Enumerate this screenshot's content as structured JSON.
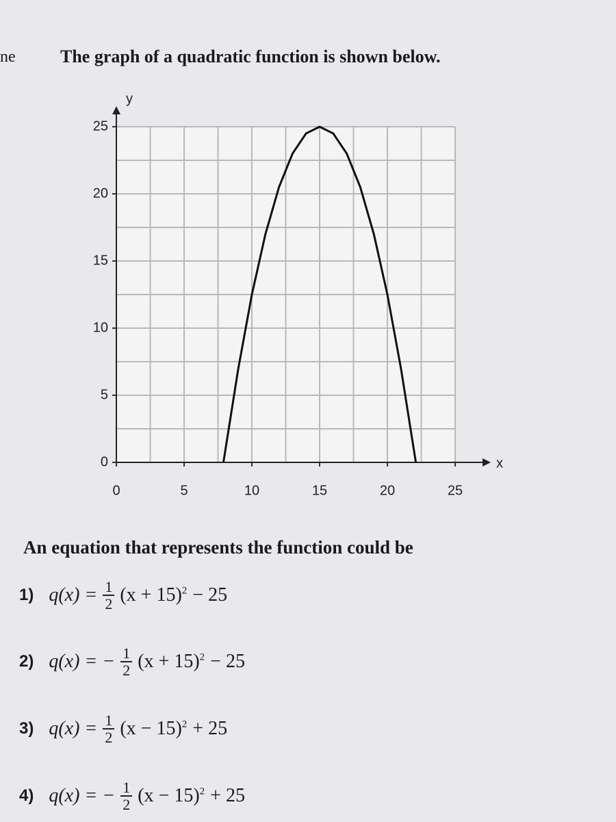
{
  "edge_fragment": "ne",
  "question": "The graph of a quadratic function is shown below.",
  "chart_data": {
    "type": "line",
    "x_label": "x",
    "y_label": "y",
    "x": [
      7.9,
      9,
      10,
      11,
      12,
      13,
      14,
      15,
      16,
      17,
      18,
      19,
      20,
      21,
      22.1
    ],
    "series": [
      {
        "color": "#111111",
        "values": [
          0,
          7,
          12.5,
          17,
          20.5,
          23,
          24.5,
          25,
          24.5,
          23,
          20.5,
          17,
          12.5,
          7,
          0
        ]
      }
    ],
    "xlim": [
      0,
      25
    ],
    "ylim": [
      0,
      25
    ],
    "xticks": [
      0,
      5,
      10,
      15,
      20,
      25
    ],
    "yticks": [
      0,
      5,
      10,
      15,
      20,
      25
    ],
    "xgrid": [
      0,
      2.5,
      5,
      7.5,
      10,
      12.5,
      15,
      17.5,
      20,
      22.5,
      25
    ],
    "ygrid": [
      0,
      2.5,
      5,
      7.5,
      10,
      12.5,
      15,
      17.5,
      20,
      22.5,
      25
    ],
    "grid": true
  },
  "prompt": "An equation that represents the function could be",
  "options": [
    {
      "number": "1)",
      "lhs": "q(x) =",
      "numerator": "1",
      "denominator": "2",
      "base": "(x + 15)",
      "exponent": "2",
      "tail": "− 25"
    },
    {
      "number": "2)",
      "lhs": "q(x) = −",
      "numerator": "1",
      "denominator": "2",
      "base": "(x + 15)",
      "exponent": "2",
      "tail": "− 25"
    },
    {
      "number": "3)",
      "lhs": "q(x) =",
      "numerator": "1",
      "denominator": "2",
      "base": "(x − 15)",
      "exponent": "2",
      "tail": "+ 25"
    },
    {
      "number": "4)",
      "lhs": "q(x) = −",
      "numerator": "1",
      "denominator": "2",
      "base": "(x − 15)",
      "exponent": "2",
      "tail": "+ 25"
    }
  ]
}
